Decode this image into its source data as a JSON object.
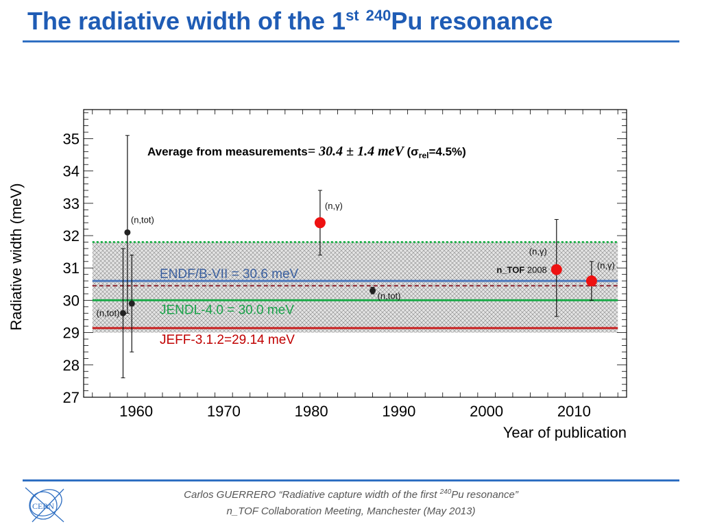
{
  "slide": {
    "title_pre": "The radiative width of the 1",
    "title_sup1": "st",
    "title_sup2": "240",
    "title_post": "Pu resonance",
    "footer_line1_pre": "Carlos GUERRERO “Radiative capture width of the first ",
    "footer_line1_sup": "240",
    "footer_line1_post": "Pu resonance”",
    "footer_line2": "n_TOF Collaboration Meeting, Manchester (May 2013)",
    "logo_text": "CERN"
  },
  "chart_data": {
    "type": "scatter",
    "xlabel": "Year of publication",
    "ylabel": "Radiative width (meV)",
    "xlim": [
      1954,
      2016
    ],
    "ylim": [
      27,
      35.9
    ],
    "xticks": [
      1960,
      1970,
      1980,
      1990,
      2000,
      2010
    ],
    "yticks": [
      27,
      28,
      29,
      30,
      31,
      32,
      33,
      34,
      35
    ],
    "xtick_labels": [
      "1960",
      "1970",
      "1980",
      "1990",
      "2000",
      "2010"
    ],
    "ytick_labels": [
      "27",
      "28",
      "29",
      "30",
      "31",
      "32",
      "33",
      "34",
      "35"
    ],
    "annotation_pre": "Average from measurements",
    "annotation_math": "= 30.4 ± 1.4 meV",
    "annotation_sigma_open": "(σ",
    "annotation_sigma_sub": "rel",
    "annotation_sigma_close": "=4.5%)",
    "average_band": {
      "value": 30.4,
      "low": 29.0,
      "high": 31.8,
      "color": "#aaaaaa"
    },
    "evaluations": [
      {
        "label": "ENDF/B-VII = 30.6 meV",
        "value": 30.6,
        "color": "#4a77bd",
        "label_color": "#3a5f9f"
      },
      {
        "label": "JENDL-4.0 = 30.0 meV",
        "value": 30.0,
        "color": "#1daa4a",
        "label_color": "#1aa34a"
      },
      {
        "label": "JEFF-3.1.2=29.14 meV",
        "value": 29.14,
        "color": "#c81e1e",
        "label_color": "#c00000"
      }
    ],
    "reference_lines": [
      {
        "value": 30.45,
        "color": "#8b2230",
        "style": "dashed"
      },
      {
        "value": 31.8,
        "color": "#22b14c",
        "style": "dotted"
      }
    ],
    "points": [
      {
        "x": 1958.5,
        "y": 29.6,
        "err_low": 27.6,
        "err_high": 31.6,
        "label": "(n,tot)",
        "color": "#222222",
        "size": "small",
        "label_side": "left"
      },
      {
        "x": 1959.0,
        "y": 32.1,
        "err_low": 29.6,
        "err_high": 35.1,
        "label": "(n,tot)",
        "color": "#222222",
        "size": "small",
        "label_side": "right"
      },
      {
        "x": 1959.5,
        "y": 29.9,
        "err_low": 28.4,
        "err_high": 31.4,
        "label": "",
        "color": "#222222",
        "size": "small",
        "label_side": "none"
      },
      {
        "x": 1981.0,
        "y": 32.4,
        "err_low": 31.4,
        "err_high": 33.4,
        "label": "(n,γ)",
        "color": "#ee1111",
        "size": "large",
        "label_side": "right"
      },
      {
        "x": 1987.0,
        "y": 30.3,
        "err_low": 30.2,
        "err_high": 30.4,
        "label": "(n,tot)",
        "color": "#222222",
        "size": "small",
        "label_side": "right"
      },
      {
        "x": 2008.0,
        "y": 30.95,
        "err_low": 29.5,
        "err_high": 32.5,
        "label": "(n,γ)",
        "color": "#ee1111",
        "size": "large",
        "label_side": "left",
        "extra_bold": "n_TOF",
        "extra_rest": " 2008"
      },
      {
        "x": 2012.0,
        "y": 30.6,
        "err_low": 30.0,
        "err_high": 31.2,
        "label": "(n,γ)",
        "color": "#ee1111",
        "size": "large",
        "label_side": "right"
      }
    ]
  }
}
